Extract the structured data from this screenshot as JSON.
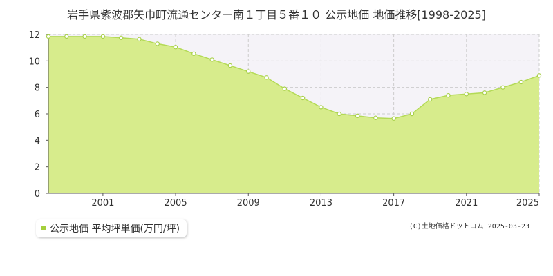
{
  "header": {
    "title": "岩手県紫波郡矢巾町流通センター南１丁目５番１０ 公示地価 地価推移[1998-2025]"
  },
  "legend": {
    "label": "公示地価 平均坪単価(万円/坪)"
  },
  "footer": {
    "credit": "(C)土地価格ドットコム 2025-03-23"
  },
  "colors": {
    "fill": "#d7ec8c",
    "line": "#b3da55",
    "marker_stroke": "#a8d04a",
    "marker_fill": "#ffffff",
    "band": "#f5f3f8",
    "grid": "#cccccc",
    "axis": "#555555",
    "legend_swatch": "#a4cf3c"
  },
  "chart_data": {
    "type": "area",
    "title": "岩手県紫波郡矢巾町流通センター南１丁目５番１０ 公示地価 地価推移[1998-2025]",
    "xlabel": "",
    "ylabel": "",
    "xlim": [
      1998,
      2025
    ],
    "ylim": [
      0,
      12
    ],
    "yticks": [
      0,
      2,
      4,
      6,
      8,
      10,
      12
    ],
    "xticks": [
      2001,
      2005,
      2009,
      2013,
      2017,
      2021,
      2025
    ],
    "grid": true,
    "legend_position": "bottom-left",
    "x": [
      1998,
      1999,
      2000,
      2001,
      2002,
      2003,
      2004,
      2005,
      2006,
      2007,
      2008,
      2009,
      2010,
      2011,
      2012,
      2013,
      2014,
      2015,
      2016,
      2017,
      2018,
      2019,
      2020,
      2021,
      2022,
      2023,
      2024,
      2025
    ],
    "series": [
      {
        "name": "公示地価 平均坪単価(万円/坪)",
        "values": [
          11.85,
          11.85,
          11.85,
          11.85,
          11.75,
          11.65,
          11.3,
          11.05,
          10.55,
          10.1,
          9.65,
          9.2,
          8.75,
          7.9,
          7.2,
          6.5,
          6.0,
          5.85,
          5.7,
          5.65,
          6.0,
          7.1,
          7.4,
          7.5,
          7.6,
          8.0,
          8.4,
          8.9
        ]
      }
    ]
  }
}
